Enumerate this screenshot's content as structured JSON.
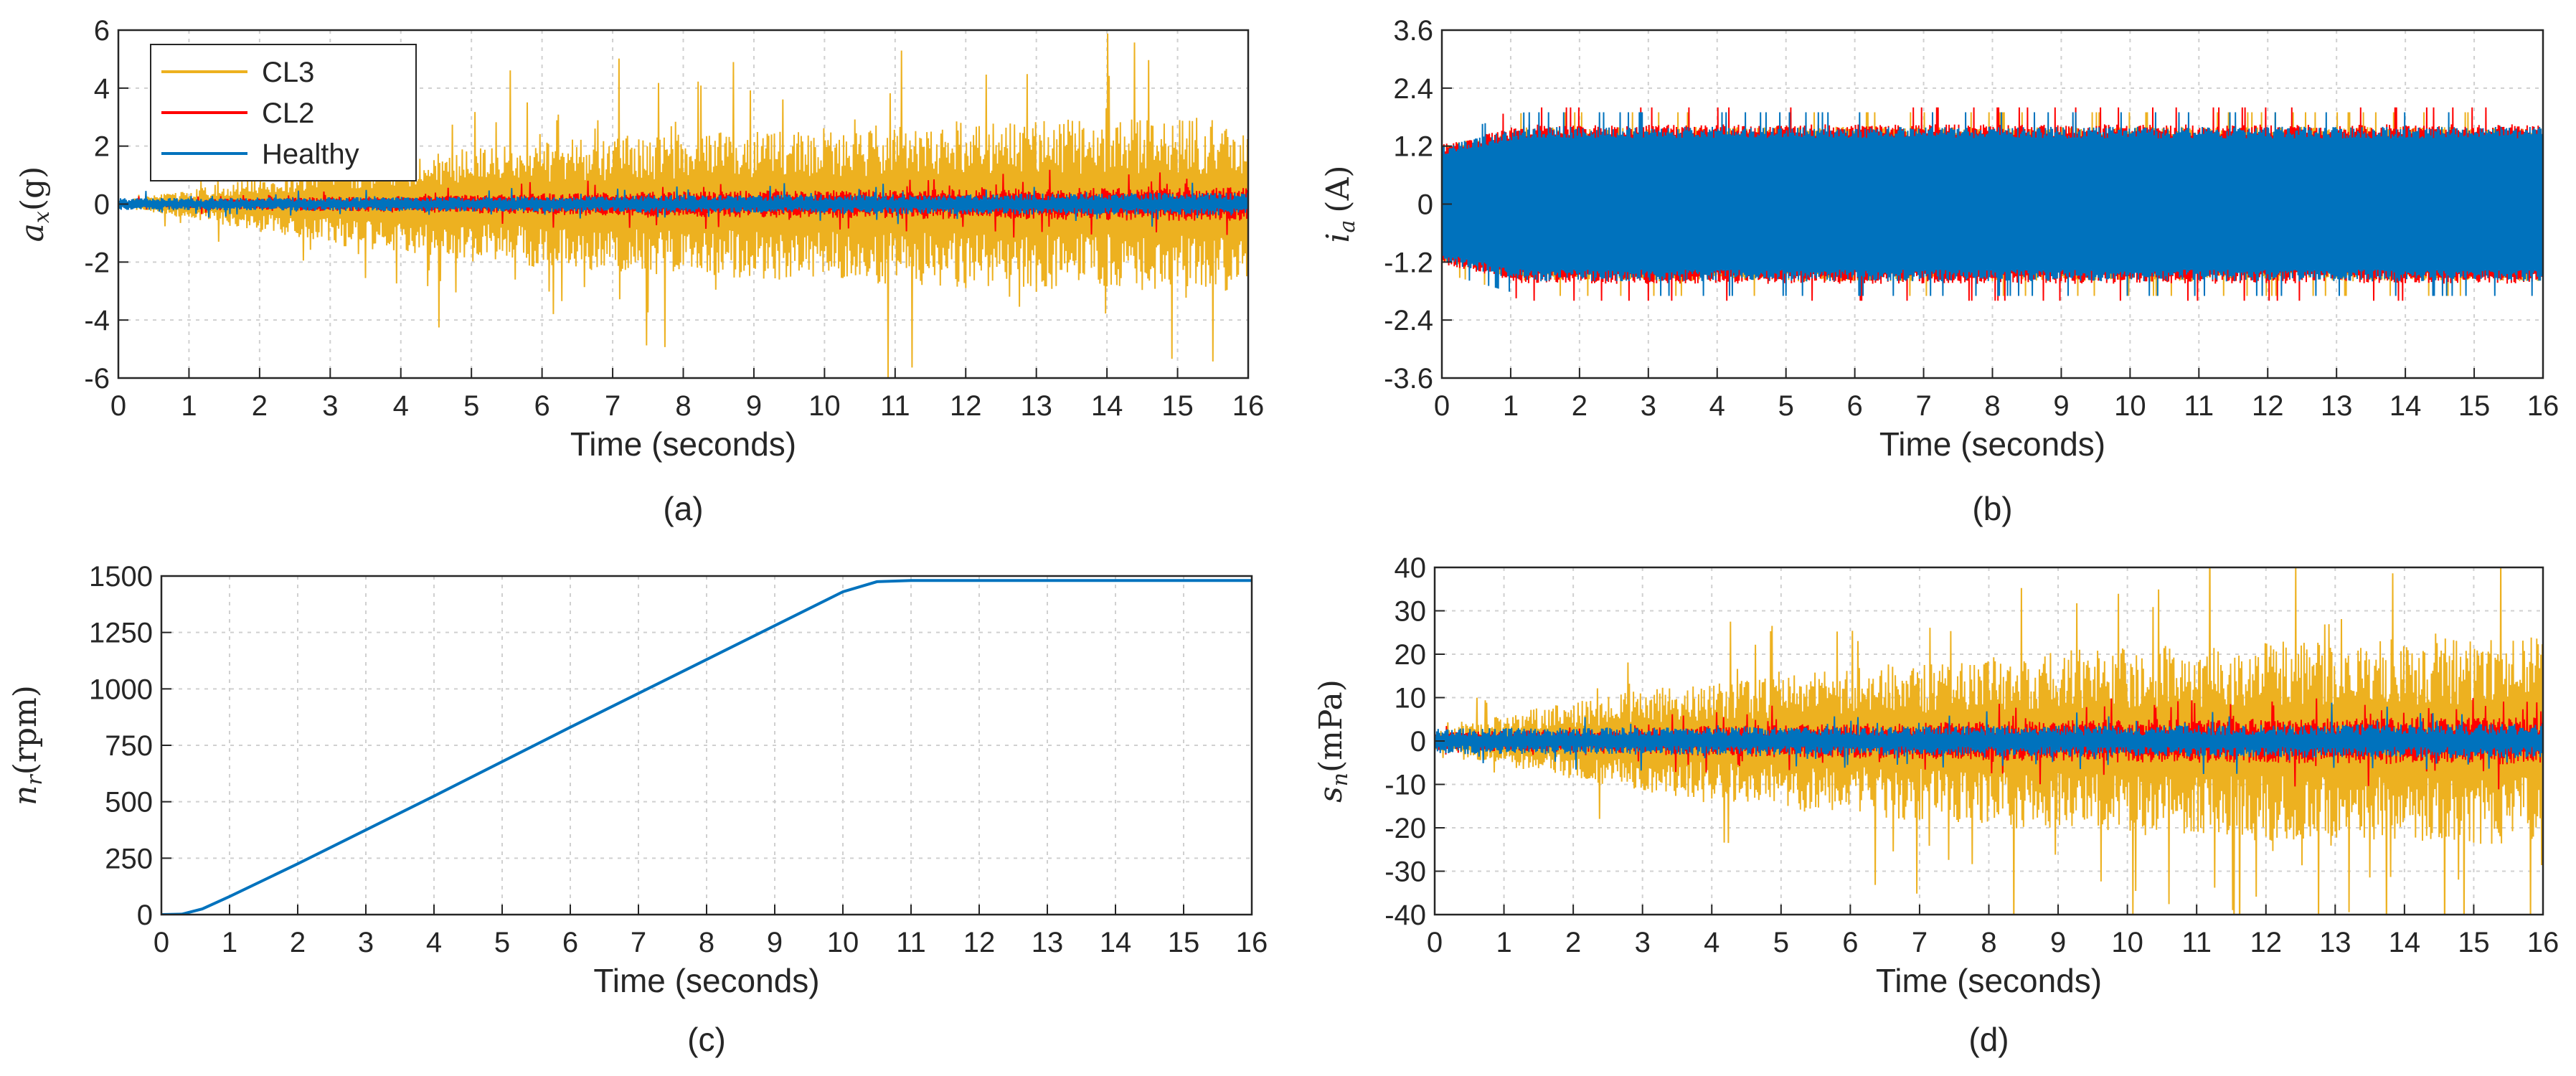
{
  "colors": {
    "cl3": "#EDB120",
    "cl2": "#FF0000",
    "healthy": "#0072BD"
  },
  "legend": [
    {
      "name": "CL3",
      "color": "#EDB120"
    },
    {
      "name": "CL2",
      "color": "#FF0000"
    },
    {
      "name": "Healthy",
      "color": "#0072BD"
    }
  ],
  "chart_data": [
    {
      "id": "a",
      "type": "line",
      "caption": "(a)",
      "xlabel": "Time (seconds)",
      "ylabel_main": "a",
      "ylabel_sub": "x",
      "ylabel_unit": "(g)",
      "xlim": [
        0,
        16
      ],
      "ylim": [
        -6,
        6
      ],
      "xticks": [
        "0",
        "1",
        "2",
        "3",
        "4",
        "5",
        "6",
        "7",
        "8",
        "9",
        "10",
        "11",
        "12",
        "13",
        "14",
        "15",
        "16"
      ],
      "yticks": [
        "-6",
        "-4",
        "-2",
        "0",
        "2",
        "4",
        "6"
      ],
      "legend_position": "top-left",
      "series": [
        {
          "name": "CL3",
          "envelope_t": [
            0,
            1,
            3,
            6,
            9,
            12,
            16
          ],
          "envelope_amp": [
            0.1,
            0.5,
            1.4,
            2.2,
            2.6,
            2.9,
            3.0
          ]
        },
        {
          "name": "CL2",
          "envelope_t": [
            0,
            3,
            8,
            16
          ],
          "envelope_amp": [
            0.1,
            0.25,
            0.45,
            0.6
          ]
        },
        {
          "name": "Healthy",
          "envelope_t": [
            0,
            16
          ],
          "envelope_amp": [
            0.2,
            0.4
          ]
        }
      ]
    },
    {
      "id": "b",
      "type": "line",
      "caption": "(b)",
      "xlabel": "Time (seconds)",
      "ylabel_main": "i",
      "ylabel_sub": "a",
      "ylabel_unit": "(A)",
      "xlim": [
        0,
        16
      ],
      "ylim": [
        -3.6,
        3.6
      ],
      "xticks": [
        "0",
        "1",
        "2",
        "3",
        "4",
        "5",
        "6",
        "7",
        "8",
        "9",
        "10",
        "11",
        "12",
        "13",
        "14",
        "15",
        "16"
      ],
      "yticks": [
        "-3.6",
        "-2.4",
        "-1.2",
        "0",
        "1.2",
        "2.4",
        "3.6"
      ],
      "series": [
        {
          "name": "CL3",
          "amplitude": 1.6,
          "peak": 1.9
        },
        {
          "name": "CL2",
          "amplitude": 1.65,
          "peak": 2.0
        },
        {
          "name": "Healthy",
          "amplitude": 1.6,
          "peak": 1.9
        }
      ]
    },
    {
      "id": "c",
      "type": "line",
      "caption": "(c)",
      "xlabel": "Time (seconds)",
      "ylabel_main": "n",
      "ylabel_sub": "r",
      "ylabel_unit": "(rpm)",
      "xlim": [
        0,
        16
      ],
      "ylim": [
        0,
        1500
      ],
      "xticks": [
        "0",
        "1",
        "2",
        "3",
        "4",
        "5",
        "6",
        "7",
        "8",
        "9",
        "10",
        "11",
        "12",
        "13",
        "14",
        "15",
        "16"
      ],
      "yticks": [
        "0",
        "250",
        "500",
        "750",
        "1000",
        "1250",
        "1500"
      ],
      "series": [
        {
          "name": "CL3",
          "x": [
            0,
            0.3,
            0.6,
            1.0,
            2,
            4,
            6,
            8,
            10,
            10.5,
            11,
            12,
            16
          ],
          "y": [
            0,
            2,
            25,
            80,
            225,
            525,
            830,
            1130,
            1430,
            1475,
            1480,
            1480,
            1480
          ]
        },
        {
          "name": "CL2",
          "x": [
            0,
            0.3,
            0.6,
            1.0,
            2,
            4,
            6,
            8,
            10,
            10.5,
            11,
            12,
            16
          ],
          "y": [
            0,
            2,
            25,
            80,
            225,
            525,
            830,
            1130,
            1430,
            1475,
            1480,
            1480,
            1480
          ]
        },
        {
          "name": "Healthy",
          "x": [
            0,
            0.3,
            0.6,
            1.0,
            2,
            4,
            6,
            8,
            10,
            10.5,
            11,
            12,
            16
          ],
          "y": [
            0,
            2,
            25,
            80,
            225,
            525,
            830,
            1130,
            1430,
            1475,
            1480,
            1480,
            1480
          ]
        }
      ]
    },
    {
      "id": "d",
      "type": "line",
      "caption": "(d)",
      "xlabel": "Time (seconds)",
      "ylabel_main": "s",
      "ylabel_sub": "n",
      "ylabel_unit": "(mPa)",
      "xlim": [
        0,
        16
      ],
      "ylim": [
        -40,
        40
      ],
      "xticks": [
        "0",
        "1",
        "2",
        "3",
        "4",
        "5",
        "6",
        "7",
        "8",
        "9",
        "10",
        "11",
        "12",
        "13",
        "14",
        "15",
        "16"
      ],
      "yticks": [
        "-40",
        "-30",
        "-20",
        "-10",
        "0",
        "10",
        "20",
        "30",
        "40"
      ],
      "series": [
        {
          "name": "CL3",
          "envelope_t": [
            0,
            1,
            3,
            6,
            9,
            12,
            16
          ],
          "envelope_amp": [
            2,
            6,
            12,
            17,
            21,
            23,
            24
          ]
        },
        {
          "name": "CL2",
          "envelope_t": [
            0,
            4,
            10,
            16
          ],
          "envelope_amp": [
            2,
            3.5,
            5,
            5.5
          ]
        },
        {
          "name": "Healthy",
          "envelope_t": [
            0,
            16
          ],
          "envelope_amp": [
            3,
            4
          ]
        }
      ]
    }
  ]
}
